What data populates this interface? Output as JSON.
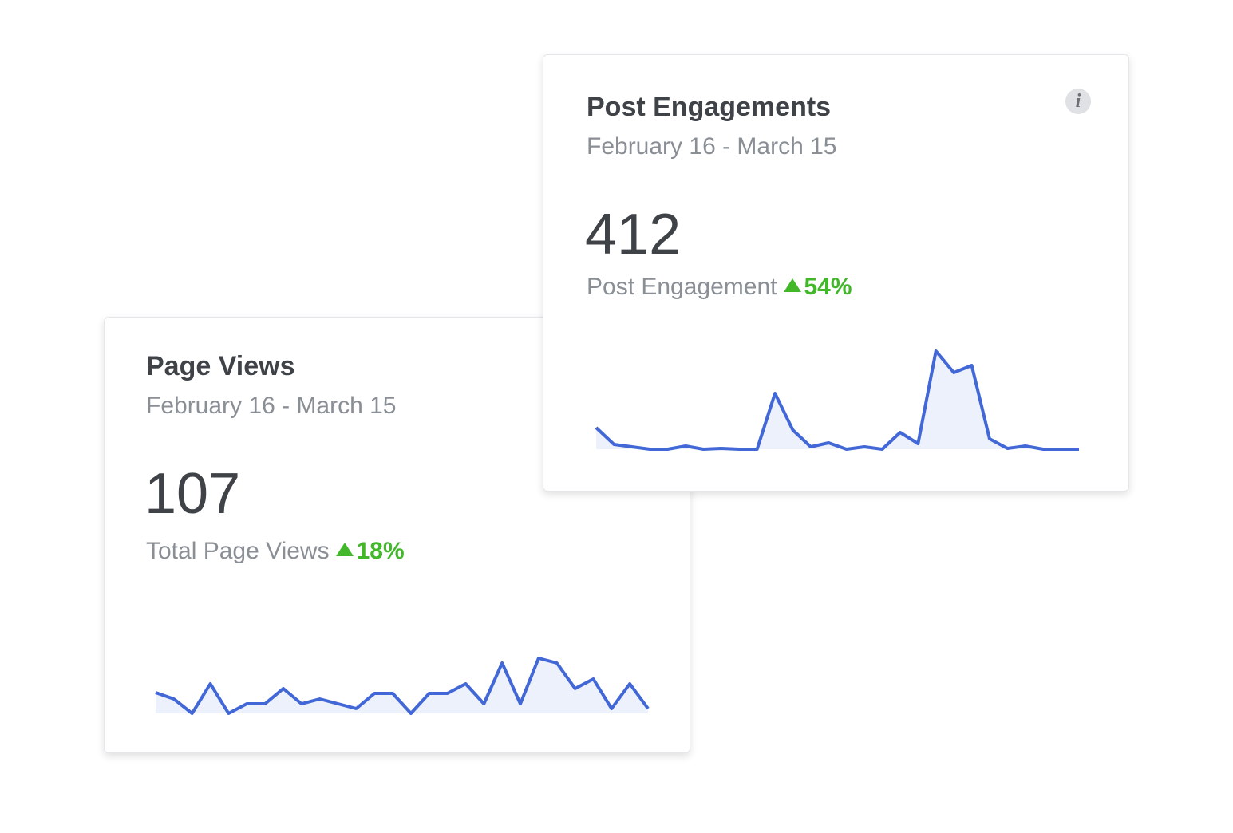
{
  "cards": [
    {
      "title": "Page Views",
      "date_range": "February 16 - March 15",
      "total": "107",
      "metric_label": "Total Page Views",
      "change": "18%",
      "sparkline": [
        26,
        18,
        0,
        37,
        0,
        12,
        12,
        31,
        12,
        18,
        12,
        6,
        25,
        25,
        0,
        25,
        25,
        37,
        12,
        63,
        12,
        69,
        63,
        31,
        43,
        6,
        37,
        6
      ]
    },
    {
      "title": "Post Engagements",
      "date_range": "February 16 - March 15",
      "total": "412",
      "metric_label": "Post Engagement",
      "change": "54%",
      "info_icon": "i",
      "sparkline": [
        27,
        6,
        3,
        0,
        0,
        4,
        0,
        1,
        0,
        0,
        70,
        24,
        3,
        8,
        0,
        3,
        0,
        21,
        7,
        123,
        96,
        105,
        13,
        1,
        4,
        0,
        0,
        0
      ]
    }
  ]
}
